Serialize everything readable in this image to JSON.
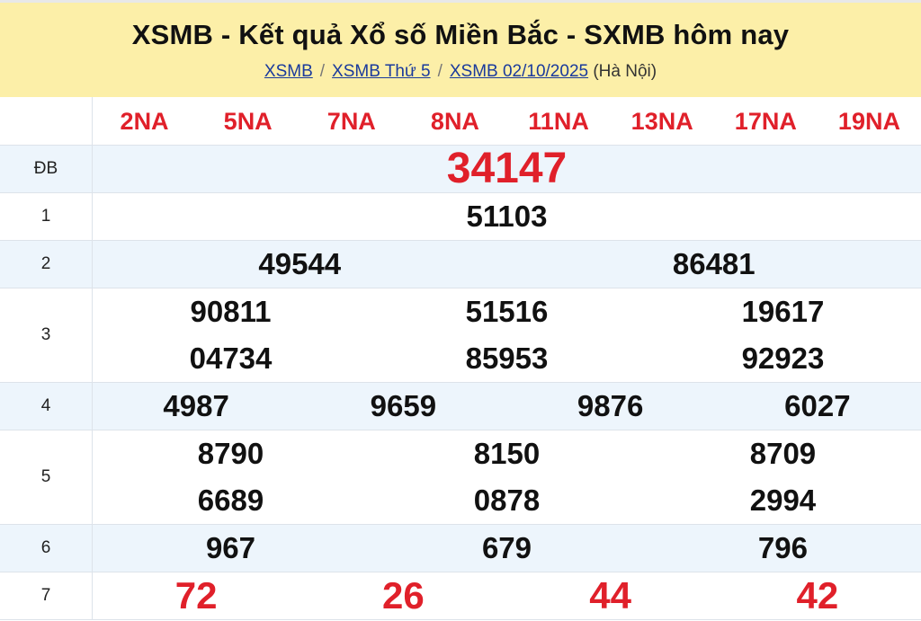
{
  "header": {
    "title": "XSMB - Kết quả Xổ số Miền Bắc - SXMB hôm nay",
    "breadcrumb": [
      "XSMB",
      "XSMB Thứ 5",
      "XSMB 02/10/2025"
    ],
    "separator": "/",
    "location": "(Hà Nội)"
  },
  "codes": [
    "2NA",
    "5NA",
    "7NA",
    "8NA",
    "11NA",
    "13NA",
    "17NA",
    "19NA"
  ],
  "prizes": [
    {
      "label": "ĐB",
      "numbers": [
        "34147"
      ]
    },
    {
      "label": "1",
      "numbers": [
        "51103"
      ]
    },
    {
      "label": "2",
      "numbers": [
        "49544",
        "86481"
      ]
    },
    {
      "label": "3",
      "numbers": [
        "90811",
        "51516",
        "19617",
        "04734",
        "85953",
        "92923"
      ]
    },
    {
      "label": "4",
      "numbers": [
        "4987",
        "9659",
        "9876",
        "6027"
      ]
    },
    {
      "label": "5",
      "numbers": [
        "8790",
        "8150",
        "8709",
        "6689",
        "0878",
        "2994"
      ]
    },
    {
      "label": "6",
      "numbers": [
        "967",
        "679",
        "796"
      ]
    },
    {
      "label": "7",
      "numbers": [
        "72",
        "26",
        "44",
        "42"
      ]
    }
  ],
  "colors": {
    "header_bg": "#fcefa8",
    "accent_red": "#e0202a",
    "row_alt": "#edf5fc",
    "link": "#1a3a9c"
  }
}
